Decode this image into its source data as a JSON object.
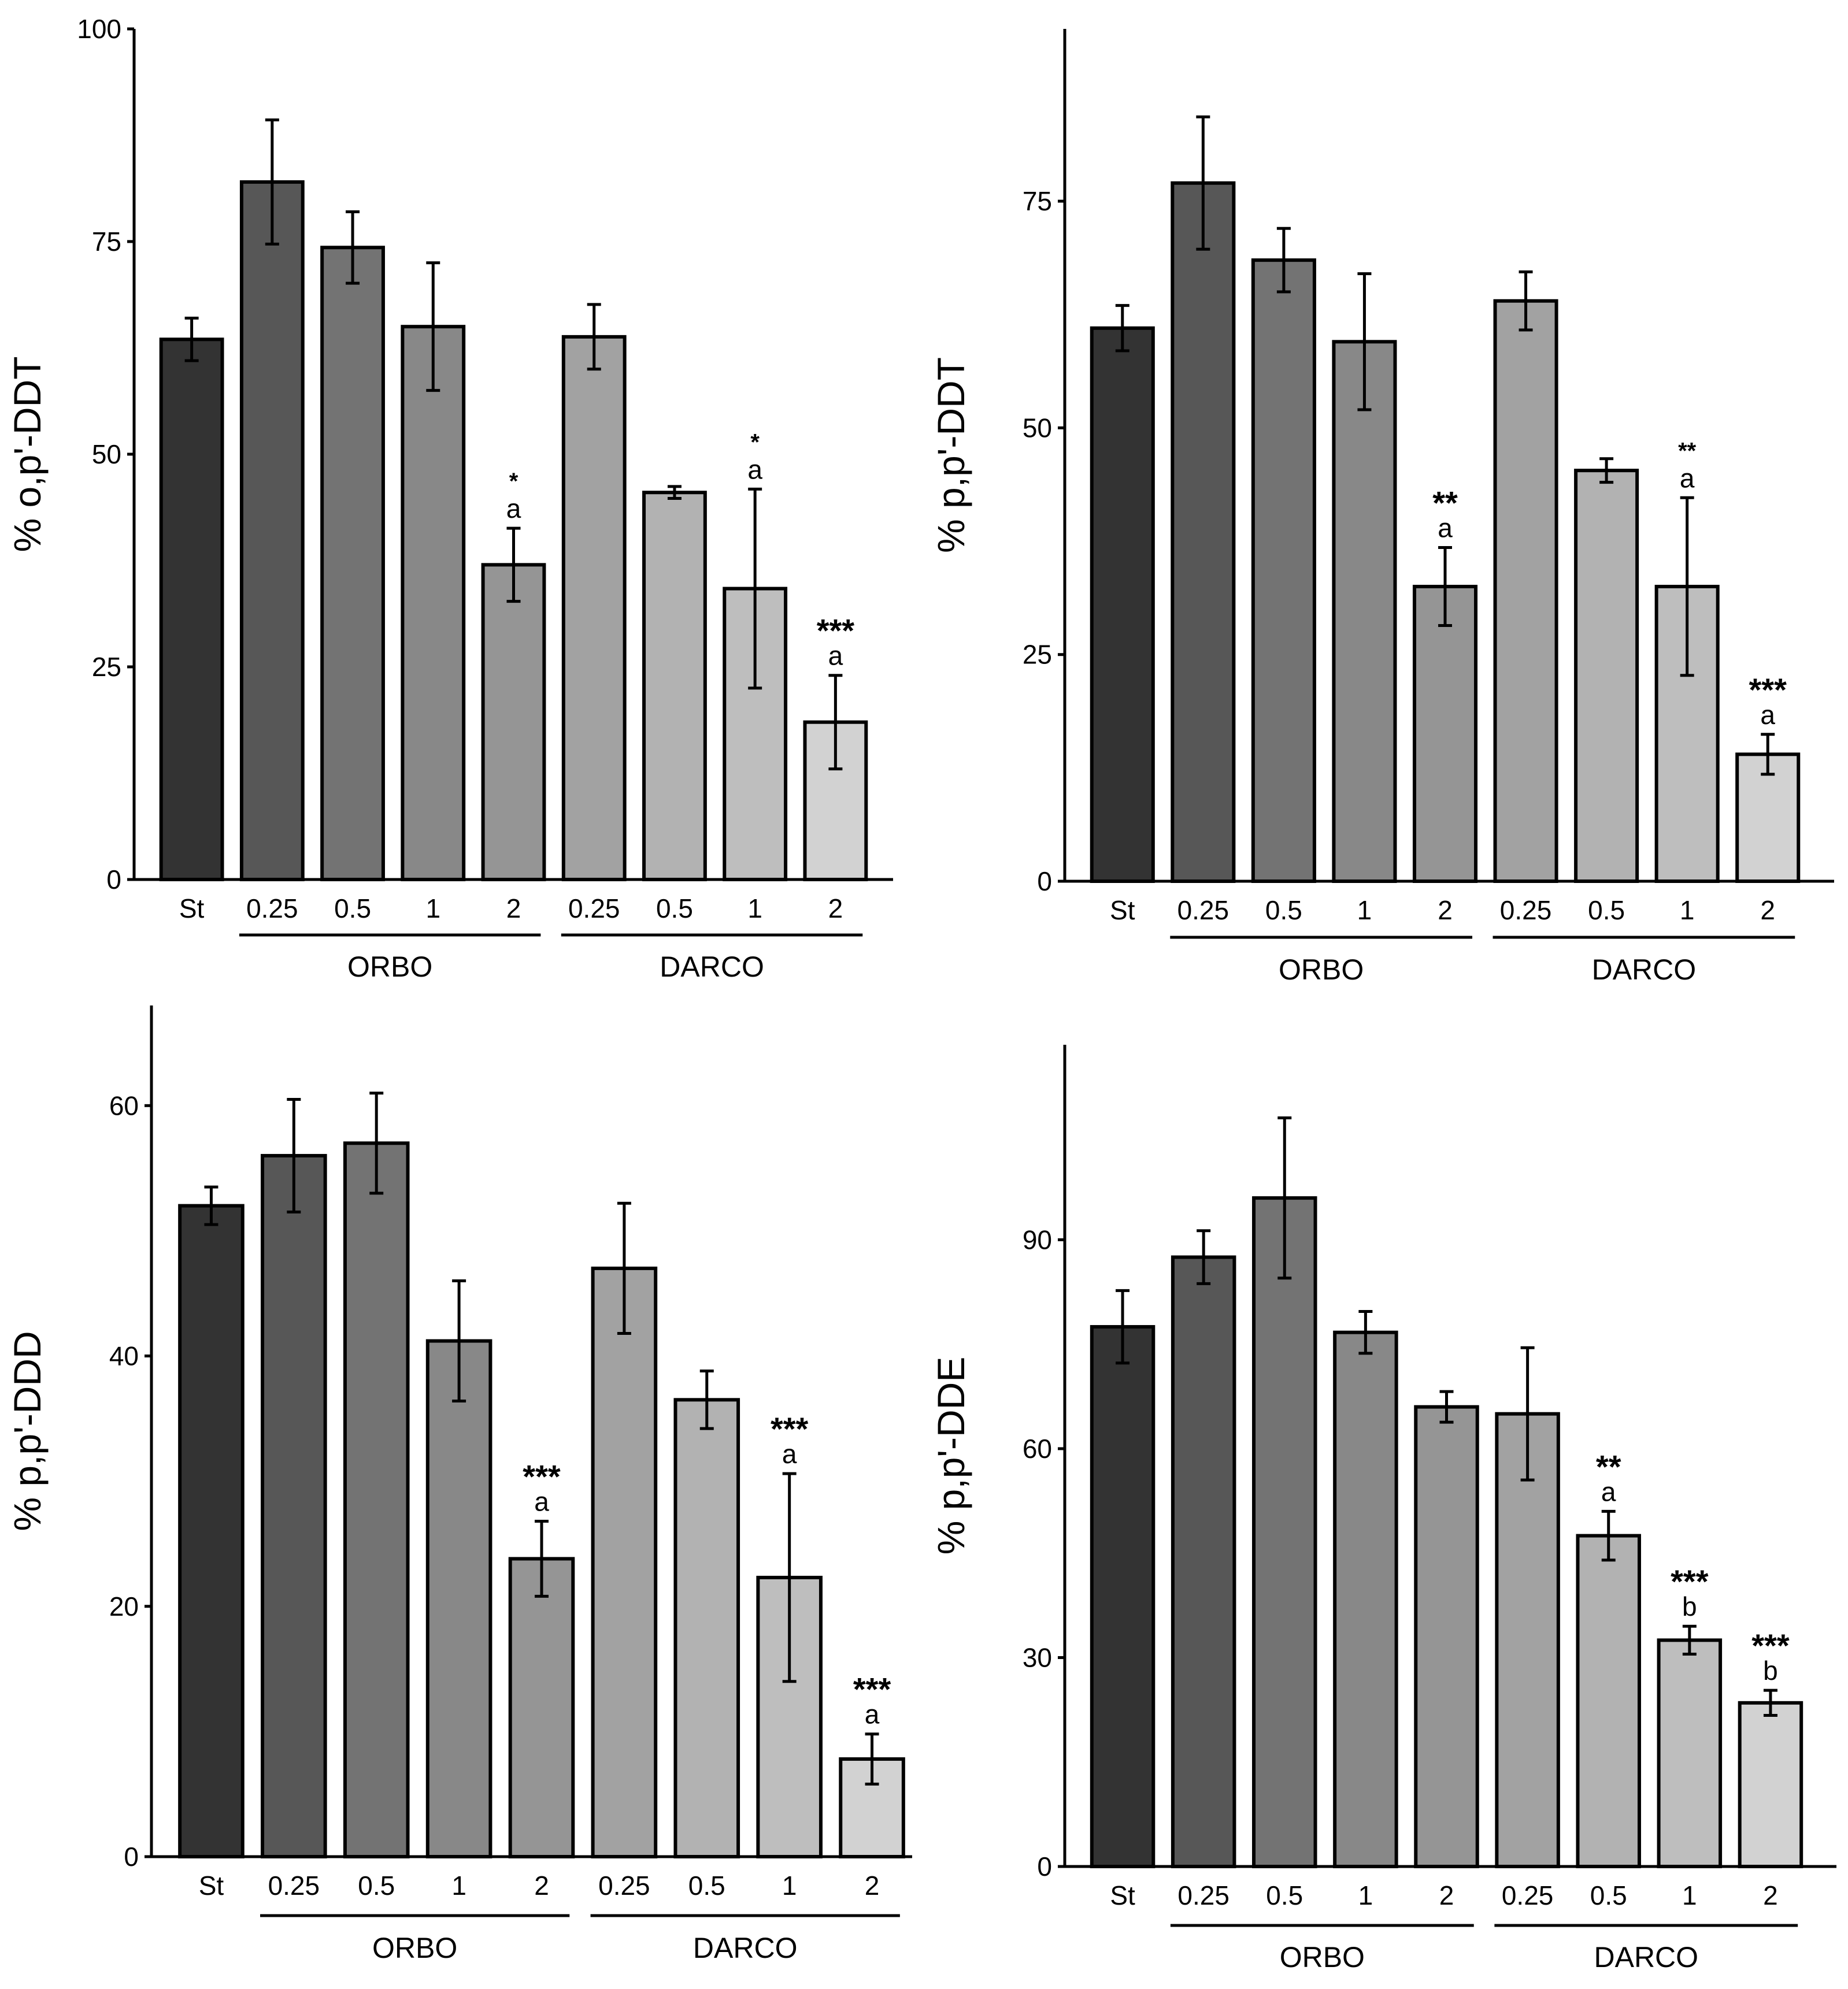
{
  "colors": {
    "St": "#333333",
    "ORBO 0.25": "#575757",
    "ORBO 0.5": "#737373",
    "ORBO 1": "#888888",
    "ORBO 2": "#959595",
    "DARCO 0.25": "#a2a2a2",
    "DARCO 0.5": "#b2b2b2",
    "DARCO 1": "#bebebe",
    "DARCO 2": "#d2d2d2"
  },
  "chart_data": [
    {
      "type": "bar",
      "ylabel": "% o,p'-DDT",
      "ylim": [
        0,
        100
      ],
      "yticks": [
        0,
        25,
        50,
        75,
        100
      ],
      "categories": [
        "St",
        "0.25",
        "0.5",
        "1",
        "2",
        "0.25",
        "0.5",
        "1",
        "2"
      ],
      "groups": [
        "ORBO",
        "DARCO"
      ],
      "values": [
        63.5,
        82,
        74.3,
        65,
        37,
        63.8,
        45.5,
        34.2,
        18.5
      ],
      "errors": [
        2.5,
        7.3,
        4.2,
        7.5,
        4.3,
        3.8,
        0.7,
        11.7,
        5.5
      ],
      "sig": [
        "",
        "",
        "",
        "",
        "*",
        "",
        "",
        "*",
        "***"
      ],
      "letters": [
        "",
        "",
        "",
        "",
        "a",
        "",
        "",
        "a",
        "a"
      ]
    },
    {
      "type": "bar",
      "ylabel": "% p,p'-DDT",
      "ylim": [
        0,
        94
      ],
      "yticks": [
        0,
        25,
        50,
        75
      ],
      "categories": [
        "St",
        "0.25",
        "0.5",
        "1",
        "2",
        "0.25",
        "0.5",
        "1",
        "2"
      ],
      "groups": [
        "ORBO",
        "DARCO"
      ],
      "values": [
        61,
        77,
        68.5,
        59.5,
        32.5,
        64,
        45.3,
        32.5,
        14
      ],
      "errors": [
        2.5,
        7.3,
        3.5,
        7.5,
        4.3,
        3.2,
        1.3,
        9.8,
        2.2
      ],
      "sig": [
        "",
        "",
        "",
        "",
        "**",
        "",
        "",
        "**",
        "***"
      ],
      "letters": [
        "",
        "",
        "",
        "",
        "a",
        "",
        "",
        "a",
        "a"
      ]
    },
    {
      "type": "bar",
      "ylabel": "% p,p'-DDD",
      "ylim": [
        0,
        68
      ],
      "yticks": [
        0,
        20,
        40,
        60
      ],
      "categories": [
        "St",
        "0.25",
        "0.5",
        "1",
        "2",
        "0.25",
        "0.5",
        "1",
        "2"
      ],
      "groups": [
        "ORBO",
        "DARCO"
      ],
      "values": [
        52,
        56,
        57,
        41.2,
        23.8,
        47,
        36.5,
        22.3,
        7.8
      ],
      "errors": [
        1.5,
        4.5,
        4,
        4.8,
        3,
        5.2,
        2.3,
        8.3,
        2
      ],
      "sig": [
        "",
        "",
        "",
        "",
        "***",
        "",
        "",
        "***",
        "***"
      ],
      "letters": [
        "",
        "",
        "",
        "",
        "a",
        "",
        "",
        "a",
        "a"
      ]
    },
    {
      "type": "bar",
      "ylabel": "% p,p'-DDE",
      "ylim": [
        0,
        118
      ],
      "yticks": [
        0,
        30,
        60,
        90
      ],
      "categories": [
        "St",
        "0.25",
        "0.5",
        "1",
        "2",
        "0.25",
        "0.5",
        "1",
        "2"
      ],
      "groups": [
        "ORBO",
        "DARCO"
      ],
      "values": [
        77.5,
        87.5,
        96,
        76.7,
        66,
        65,
        47.5,
        32.5,
        23.5
      ],
      "errors": [
        5.2,
        3.8,
        11.5,
        3,
        2.2,
        9.5,
        3.5,
        2,
        1.8
      ],
      "sig": [
        "",
        "",
        "",
        "",
        "",
        "",
        "**",
        "***",
        "***"
      ],
      "letters": [
        "",
        "",
        "",
        "",
        "",
        "",
        "a",
        "b",
        "b"
      ]
    }
  ]
}
